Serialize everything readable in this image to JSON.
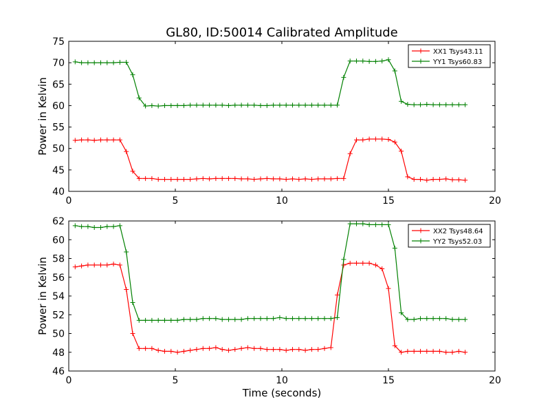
{
  "chart_data": [
    {
      "type": "line",
      "title": "GL80, ID:50014 Calibrated Amplitude",
      "xlabel": "",
      "ylabel": "Power in Kelvin",
      "xlim": [
        0,
        20
      ],
      "ylim": [
        40,
        75
      ],
      "xticks": [
        "0",
        "5",
        "10",
        "15",
        "20"
      ],
      "yticks": [
        "40",
        "45",
        "50",
        "55",
        "60",
        "65",
        "70",
        "75"
      ],
      "legend_position": "top-right",
      "grid": false,
      "x": [
        0.3,
        0.6,
        0.9,
        1.2,
        1.5,
        1.8,
        2.1,
        2.4,
        2.7,
        3.0,
        3.3,
        3.6,
        3.9,
        4.2,
        4.5,
        4.8,
        5.1,
        5.4,
        5.7,
        6.0,
        6.3,
        6.6,
        6.9,
        7.2,
        7.5,
        7.8,
        8.1,
        8.4,
        8.7,
        9.0,
        9.3,
        9.6,
        9.9,
        10.2,
        10.5,
        10.8,
        11.1,
        11.4,
        11.7,
        12.0,
        12.3,
        12.6,
        12.9,
        13.2,
        13.5,
        13.8,
        14.1,
        14.4,
        14.7,
        15.0,
        15.3,
        15.6,
        15.9,
        16.2,
        16.5,
        16.8,
        17.1,
        17.4,
        17.7,
        18.0,
        18.3,
        18.6
      ],
      "series": [
        {
          "name": "XX1 Tsys43.11",
          "color": "#ff0000",
          "values": [
            51.9,
            52.0,
            52.0,
            51.9,
            52.0,
            52.0,
            52.0,
            52.0,
            49.3,
            44.7,
            43.0,
            43.0,
            43.0,
            42.8,
            42.8,
            42.8,
            42.8,
            42.8,
            42.8,
            42.9,
            43.0,
            42.9,
            43.0,
            43.0,
            43.0,
            43.0,
            42.9,
            42.9,
            42.8,
            42.9,
            43.0,
            42.9,
            42.9,
            42.8,
            42.9,
            42.8,
            42.9,
            42.8,
            42.9,
            42.9,
            42.9,
            43.0,
            43.0,
            48.8,
            52.0,
            52.0,
            52.2,
            52.2,
            52.2,
            52.1,
            51.5,
            49.4,
            43.4,
            42.8,
            42.8,
            42.6,
            42.8,
            42.8,
            42.9,
            42.7,
            42.7,
            42.6
          ]
        },
        {
          "name": "YY1 Tsys60.83",
          "color": "#008000",
          "values": [
            70.2,
            70.0,
            70.0,
            70.0,
            70.0,
            70.0,
            70.0,
            70.1,
            70.1,
            67.2,
            61.8,
            59.9,
            60.0,
            59.9,
            60.0,
            60.0,
            60.0,
            60.0,
            60.1,
            60.1,
            60.1,
            60.1,
            60.1,
            60.1,
            60.0,
            60.1,
            60.1,
            60.1,
            60.1,
            60.0,
            60.0,
            60.1,
            60.1,
            60.1,
            60.1,
            60.1,
            60.1,
            60.1,
            60.1,
            60.1,
            60.1,
            60.1,
            66.6,
            70.4,
            70.4,
            70.4,
            70.3,
            70.3,
            70.4,
            70.7,
            68.1,
            61.0,
            60.3,
            60.2,
            60.2,
            60.3,
            60.2,
            60.2,
            60.2,
            60.2,
            60.2,
            60.2
          ]
        }
      ]
    },
    {
      "type": "line",
      "title": "",
      "xlabel": "Time (seconds)",
      "ylabel": "Power in Kelvin",
      "xlim": [
        0,
        20
      ],
      "ylim": [
        46,
        62
      ],
      "xticks": [
        "0",
        "5",
        "10",
        "15",
        "20"
      ],
      "yticks": [
        "46",
        "48",
        "50",
        "52",
        "54",
        "56",
        "58",
        "60",
        "62"
      ],
      "legend_position": "top-right",
      "grid": false,
      "x": [
        0.3,
        0.6,
        0.9,
        1.2,
        1.5,
        1.8,
        2.1,
        2.4,
        2.7,
        3.0,
        3.3,
        3.6,
        3.9,
        4.2,
        4.5,
        4.8,
        5.1,
        5.4,
        5.7,
        6.0,
        6.3,
        6.6,
        6.9,
        7.2,
        7.5,
        7.8,
        8.1,
        8.4,
        8.7,
        9.0,
        9.3,
        9.6,
        9.9,
        10.2,
        10.5,
        10.8,
        11.1,
        11.4,
        11.7,
        12.0,
        12.3,
        12.6,
        12.9,
        13.2,
        13.5,
        13.8,
        14.1,
        14.4,
        14.7,
        15.0,
        15.3,
        15.6,
        15.9,
        16.2,
        16.5,
        16.8,
        17.1,
        17.4,
        17.7,
        18.0,
        18.3,
        18.6
      ],
      "series": [
        {
          "name": "XX2 Tsys48.64",
          "color": "#ff0000",
          "values": [
            57.1,
            57.2,
            57.3,
            57.3,
            57.3,
            57.3,
            57.4,
            57.3,
            54.7,
            50.0,
            48.4,
            48.4,
            48.4,
            48.2,
            48.1,
            48.1,
            48.0,
            48.1,
            48.2,
            48.3,
            48.4,
            48.4,
            48.5,
            48.3,
            48.2,
            48.3,
            48.4,
            48.5,
            48.4,
            48.4,
            48.3,
            48.3,
            48.3,
            48.2,
            48.3,
            48.3,
            48.2,
            48.3,
            48.3,
            48.4,
            48.5,
            54.1,
            57.3,
            57.5,
            57.5,
            57.5,
            57.5,
            57.3,
            56.9,
            54.8,
            48.7,
            48.0,
            48.1,
            48.1,
            48.1,
            48.1,
            48.1,
            48.1,
            48.0,
            48.0,
            48.1,
            48.0
          ]
        },
        {
          "name": "YY2 Tsys52.03",
          "color": "#008000",
          "values": [
            61.5,
            61.4,
            61.4,
            61.3,
            61.3,
            61.4,
            61.4,
            61.5,
            58.7,
            53.3,
            51.4,
            51.4,
            51.4,
            51.4,
            51.4,
            51.4,
            51.4,
            51.5,
            51.5,
            51.5,
            51.6,
            51.6,
            51.6,
            51.5,
            51.5,
            51.5,
            51.5,
            51.6,
            51.6,
            51.6,
            51.6,
            51.6,
            51.7,
            51.6,
            51.6,
            51.6,
            51.6,
            51.6,
            51.6,
            51.6,
            51.6,
            51.7,
            57.9,
            61.7,
            61.7,
            61.7,
            61.6,
            61.6,
            61.6,
            61.6,
            59.1,
            52.2,
            51.5,
            51.5,
            51.6,
            51.6,
            51.6,
            51.6,
            51.6,
            51.5,
            51.5,
            51.5
          ]
        }
      ]
    }
  ]
}
